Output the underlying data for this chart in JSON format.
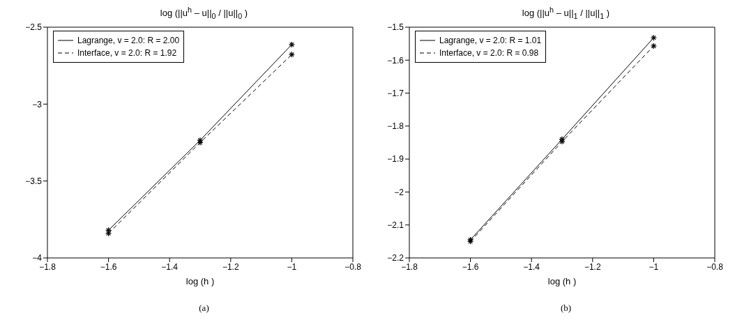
{
  "chart_data": [
    {
      "type": "line",
      "title": "log (||u$^{h}$ – u||$_{0}$ / ||u||$_{0}$ )",
      "xlabel": "log (h )",
      "annotations": [
        "(a)"
      ],
      "x": [
        -1.6,
        -1.3,
        -1.0
      ],
      "series": [
        {
          "name": "Lagrange, v = 2.0: R = 2.00",
          "color": "#000000",
          "values": [
            -3.82,
            -3.235,
            -2.613
          ],
          "line_style": "solid"
        },
        {
          "name": "Interface, v = 2.0: R = 1.92",
          "color": "#000000",
          "values": [
            -3.84,
            -3.25,
            -2.678
          ],
          "line_style": "dashed"
        }
      ],
      "xlim": [
        -1.8,
        -0.8
      ],
      "xticks": [
        -1.8,
        -1.6,
        -1.4,
        -1.2,
        -1,
        -0.8
      ],
      "ylim": [
        -4,
        -2.5
      ],
      "yticks": [
        -4,
        -3.5,
        -3,
        -2.5
      ],
      "grid": false,
      "legend": "top left",
      "marker": "cross"
    },
    {
      "type": "line",
      "title": "log (||u$^{h}$ – u||$_{1}$ / ||u||$_{1}$ )",
      "xlabel": "log (h )",
      "annotations": [
        "(b)"
      ],
      "x": [
        -1.6,
        -1.3,
        -1.0
      ],
      "series": [
        {
          "name": "Lagrange, v = 2.0: R = 1.01",
          "color": "#000000",
          "values": [
            -2.145,
            -1.84,
            -1.532
          ],
          "line_style": "solid"
        },
        {
          "name": "Interface, v = 2.0: R = 0.98",
          "color": "#000000",
          "values": [
            -2.15,
            -1.847,
            -1.557
          ],
          "line_style": "dashed"
        }
      ],
      "xlim": [
        -1.8,
        -0.8
      ],
      "xticks": [
        -1.8,
        -1.6,
        -1.4,
        -1.2,
        -1,
        -0.8
      ],
      "ylim": [
        -2.2,
        -1.5
      ],
      "yticks": [
        -2.2,
        -2.1,
        -2,
        -1.9,
        -1.8,
        -1.7,
        -1.6,
        -1.5
      ],
      "grid": false,
      "legend": "top left",
      "marker": "cross"
    }
  ]
}
